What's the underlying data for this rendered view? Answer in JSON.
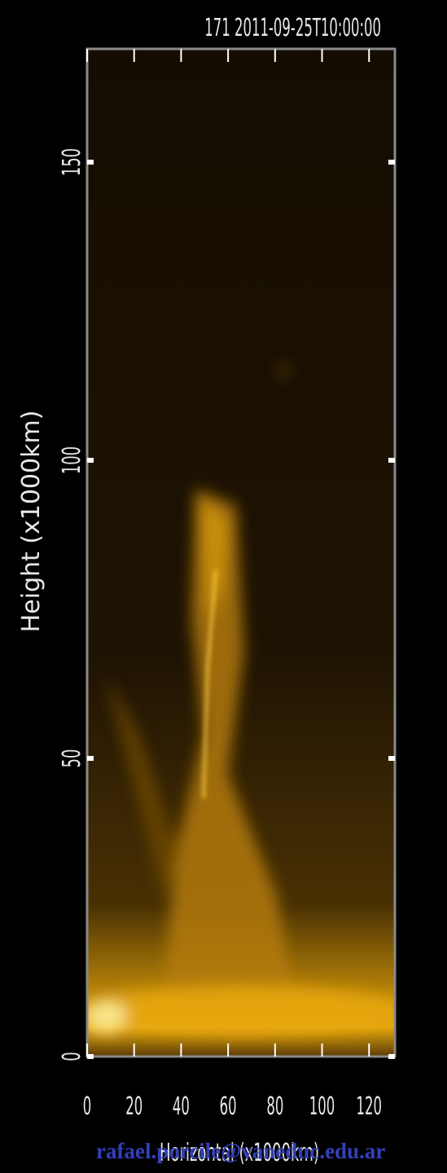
{
  "chart_data": {
    "type": "image",
    "title": "171 2011-09-25T10:00:00",
    "x_label": "Horizontal (x1000km)",
    "y_label": "Height (x1000km)",
    "xlim": [
      0,
      131
    ],
    "xticks": [
      0,
      20,
      40,
      60,
      80,
      100,
      120
    ],
    "ylim": [
      0,
      169
    ],
    "yticks": [
      0,
      50,
      100,
      150
    ]
  },
  "watermark": "rafael.porcile@vaneduc.edu.ar"
}
